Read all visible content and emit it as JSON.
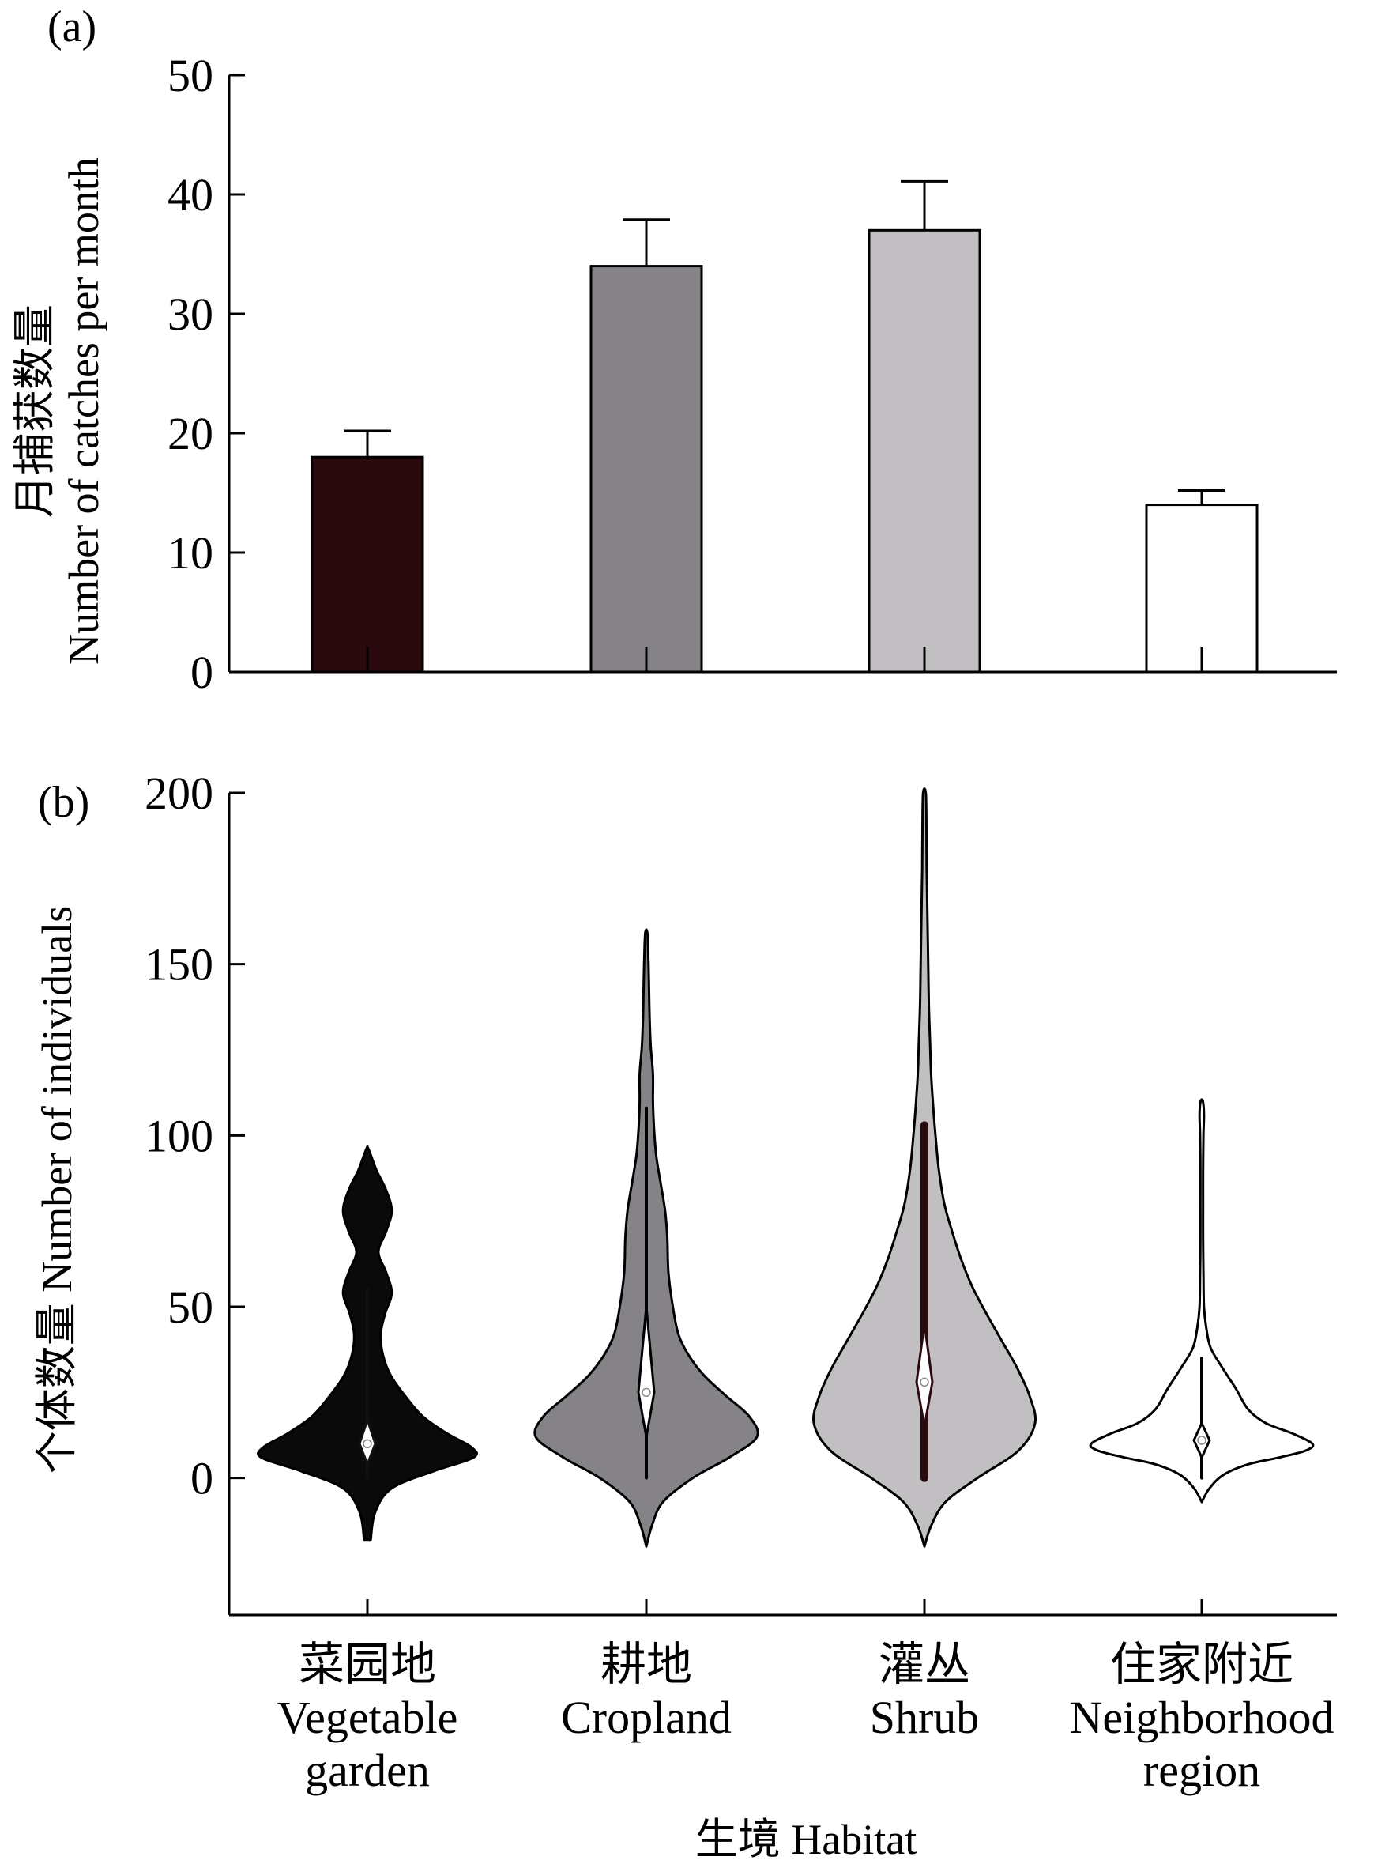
{
  "chart_data": [
    {
      "type": "bar",
      "panel_label": "(a)",
      "ylabel_zh": "月捕获数量",
      "ylabel_en": "Number of catches per month",
      "ylim": [
        0,
        50
      ],
      "yticks": [
        "0",
        "10",
        "20",
        "30",
        "40",
        "50"
      ],
      "categories": [
        "Vegetable garden",
        "Cropland",
        "Shrub",
        "Neighborhood region"
      ],
      "values": [
        18,
        34,
        37,
        14
      ],
      "errors": [
        2.2,
        3.9,
        4.1,
        1.2
      ],
      "colors": [
        "#2a0a0e",
        "#858387",
        "#c2bfc3",
        "#ffffff"
      ]
    },
    {
      "type": "violin",
      "panel_label": "(b)",
      "ylabel": "个体数量 Number of individuals",
      "ylim": [
        -40,
        200
      ],
      "yticks": [
        "0",
        "50",
        "100",
        "150",
        "200"
      ],
      "xlabel": "生境 Habitat",
      "categories": [
        {
          "zh": "菜园地",
          "en1": "Vegetable",
          "en2": "garden"
        },
        {
          "zh": "耕地",
          "en1": "Cropland",
          "en2": ""
        },
        {
          "zh": "灌丛",
          "en1": "Shrub",
          "en2": ""
        },
        {
          "zh": "住家附近",
          "en1": "Neighborhood",
          "en2": "region"
        }
      ],
      "series": [
        {
          "fill": "#0a0a0a",
          "whisker": "#111111",
          "min": -18,
          "max": 96,
          "median": 10,
          "q1": 4,
          "q3": 17,
          "whisker_low": 0,
          "whisker_high": 55,
          "profile": [
            [
              -18,
              0.03
            ],
            [
              -10,
              0.07
            ],
            [
              -3,
              0.22
            ],
            [
              2,
              0.6
            ],
            [
              6,
              0.96
            ],
            [
              9,
              0.94
            ],
            [
              13,
              0.72
            ],
            [
              18,
              0.5
            ],
            [
              24,
              0.34
            ],
            [
              30,
              0.21
            ],
            [
              36,
              0.14
            ],
            [
              42,
              0.12
            ],
            [
              48,
              0.16
            ],
            [
              54,
              0.22
            ],
            [
              60,
              0.17
            ],
            [
              66,
              0.1
            ],
            [
              72,
              0.17
            ],
            [
              78,
              0.22
            ],
            [
              84,
              0.17
            ],
            [
              90,
              0.08
            ],
            [
              96,
              0.01
            ]
          ]
        },
        {
          "fill": "#858387",
          "whisker": "#000000",
          "min": -20,
          "max": 159,
          "median": 25,
          "q1": 12,
          "q3": 50,
          "whisker_low": 0,
          "whisker_high": 108,
          "profile": [
            [
              -20,
              0.0
            ],
            [
              -14,
              0.05
            ],
            [
              -7,
              0.15
            ],
            [
              0,
              0.42
            ],
            [
              6,
              0.75
            ],
            [
              12,
              1.0
            ],
            [
              18,
              0.93
            ],
            [
              24,
              0.72
            ],
            [
              30,
              0.52
            ],
            [
              36,
              0.38
            ],
            [
              42,
              0.29
            ],
            [
              50,
              0.24
            ],
            [
              60,
              0.2
            ],
            [
              70,
              0.19
            ],
            [
              78,
              0.17
            ],
            [
              86,
              0.13
            ],
            [
              94,
              0.09
            ],
            [
              102,
              0.07
            ],
            [
              110,
              0.06
            ],
            [
              118,
              0.06
            ],
            [
              126,
              0.04
            ],
            [
              134,
              0.03
            ],
            [
              142,
              0.025
            ],
            [
              150,
              0.02
            ],
            [
              159,
              0.01
            ]
          ]
        },
        {
          "fill": "#c2bfc3",
          "whisker": "#2a0a0e",
          "min": -20,
          "max": 200,
          "median": 28,
          "q1": 15,
          "q3": 45,
          "whisker_low": 0,
          "whisker_high": 103,
          "profile": [
            [
              -20,
              0.0
            ],
            [
              -14,
              0.06
            ],
            [
              -7,
              0.19
            ],
            [
              0,
              0.48
            ],
            [
              8,
              0.85
            ],
            [
              16,
              1.0
            ],
            [
              24,
              0.95
            ],
            [
              32,
              0.84
            ],
            [
              40,
              0.7
            ],
            [
              48,
              0.56
            ],
            [
              56,
              0.43
            ],
            [
              64,
              0.33
            ],
            [
              72,
              0.25
            ],
            [
              80,
              0.18
            ],
            [
              90,
              0.13
            ],
            [
              100,
              0.1
            ],
            [
              108,
              0.08
            ],
            [
              118,
              0.06
            ],
            [
              128,
              0.05
            ],
            [
              138,
              0.04
            ],
            [
              148,
              0.035
            ],
            [
              158,
              0.03
            ],
            [
              168,
              0.025
            ],
            [
              178,
              0.02
            ],
            [
              190,
              0.018
            ],
            [
              200,
              0.012
            ]
          ]
        },
        {
          "fill": "#ffffff",
          "whisker": "#000000",
          "min": -7,
          "max": 110,
          "median": 11,
          "q1": 6,
          "q3": 16,
          "whisker_low": 0,
          "whisker_high": 35,
          "profile": [
            [
              -7,
              0.0
            ],
            [
              -3,
              0.07
            ],
            [
              1,
              0.2
            ],
            [
              4,
              0.42
            ],
            [
              6,
              0.7
            ],
            [
              8,
              0.94
            ],
            [
              10,
              1.0
            ],
            [
              13,
              0.82
            ],
            [
              16,
              0.58
            ],
            [
              20,
              0.42
            ],
            [
              26,
              0.31
            ],
            [
              32,
              0.19
            ],
            [
              38,
              0.08
            ],
            [
              44,
              0.04
            ],
            [
              50,
              0.02
            ],
            [
              60,
              0.015
            ],
            [
              70,
              0.012
            ],
            [
              80,
              0.012
            ],
            [
              90,
              0.012
            ],
            [
              100,
              0.015
            ],
            [
              106,
              0.02
            ],
            [
              110,
              0.01
            ]
          ]
        }
      ]
    }
  ]
}
